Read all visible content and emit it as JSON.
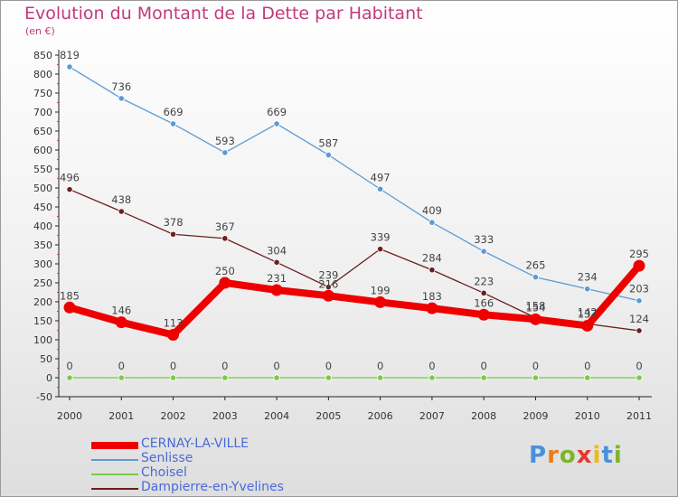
{
  "title": "Evolution du Montant de la Dette par Habitant",
  "subtitle": "(en €)",
  "logo": "Proxiti",
  "chart_data": {
    "type": "line",
    "title": "Evolution du Montant de la Dette par Habitant",
    "subtitle": "(en €)",
    "xlabel": "",
    "ylabel": "",
    "x": [
      2000,
      2001,
      2002,
      2003,
      2004,
      2005,
      2006,
      2007,
      2008,
      2009,
      2010,
      2011
    ],
    "ylim": [
      -50,
      850
    ],
    "ytick_step": 50,
    "grid": false,
    "legend_position": "bottom-left",
    "series": [
      {
        "name": "CERNAY-LA-VILLE",
        "color": "#ee0000",
        "values": [
          185,
          146,
          113,
          250,
          231,
          216,
          199,
          183,
          166,
          154,
          137,
          295
        ],
        "labels": [
          "185",
          "146",
          "113",
          "250",
          "231",
          "216",
          "199",
          "183",
          "166",
          "154",
          "137",
          "295"
        ]
      },
      {
        "name": "Senlisse",
        "color": "#5b9bd5",
        "values": [
          819,
          736,
          669,
          593,
          669,
          587,
          497,
          409,
          333,
          265,
          234,
          203
        ],
        "labels": [
          "819",
          "736",
          "669",
          "593",
          "669",
          "587",
          "497",
          "409",
          "333",
          "265",
          "234",
          "203"
        ]
      },
      {
        "name": "Choisel",
        "color": "#77cc44",
        "values": [
          0,
          0,
          0,
          0,
          0,
          0,
          0,
          0,
          0,
          0,
          0,
          0
        ],
        "labels": [
          "0",
          "0",
          "0",
          "0",
          "0",
          "0",
          "0",
          "0",
          "0",
          "0",
          "0",
          "0"
        ]
      },
      {
        "name": "Dampierre-en-Yvelines",
        "color": "#6b1f1f",
        "values": [
          496,
          438,
          378,
          367,
          304,
          239,
          339,
          284,
          223,
          158,
          142,
          124
        ],
        "labels": [
          "496",
          "438",
          "378",
          "367",
          "304",
          "239",
          "339",
          "284",
          "223",
          "158",
          "142",
          "124"
        ]
      }
    ]
  }
}
